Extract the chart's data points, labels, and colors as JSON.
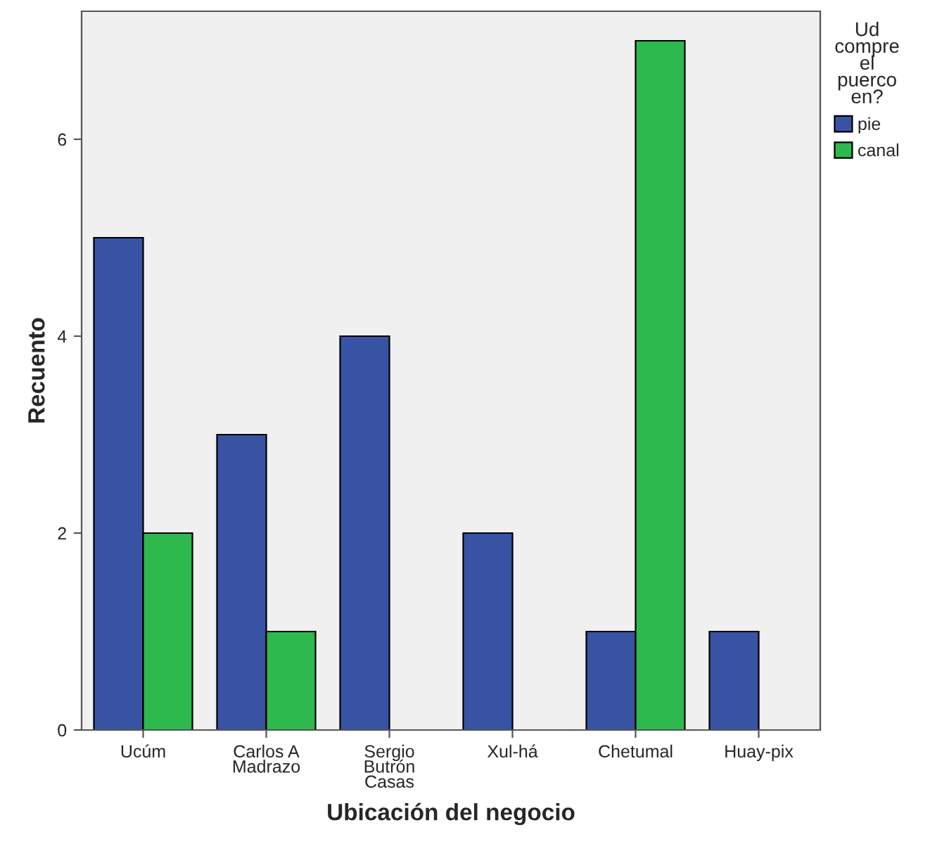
{
  "chart_data": {
    "type": "bar",
    "xlabel": "Ubicación del negocio",
    "ylabel": "Recuento",
    "legend_title": "Ud\ncompre\nel\npuerco\nen?",
    "categories": [
      "Ucúm",
      "Carlos A\nMadrazo",
      "Sergio\nButrón\nCasas",
      "Xul-há",
      "Chetumal",
      "Huay-pix"
    ],
    "series": [
      {
        "name": "pie",
        "color": "#3953a4",
        "values": [
          5,
          3,
          4,
          2,
          1,
          1
        ]
      },
      {
        "name": "canal",
        "color": "#2db94d",
        "values": [
          2,
          1,
          null,
          null,
          7,
          null
        ]
      }
    ],
    "ylim": [
      0,
      7.3
    ],
    "yticks": [
      0,
      2,
      4,
      6
    ],
    "grid": false,
    "legend": "right"
  }
}
